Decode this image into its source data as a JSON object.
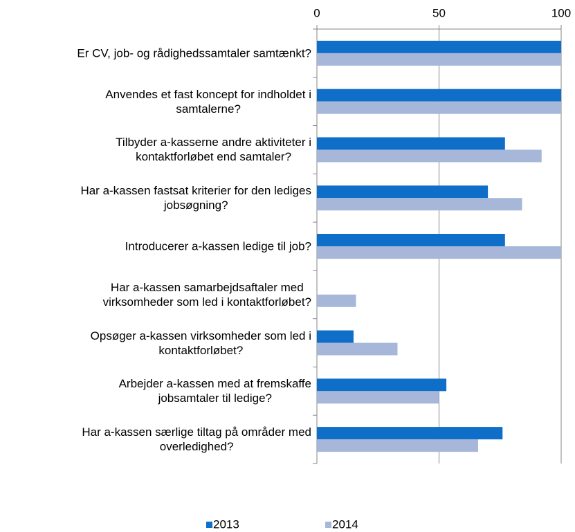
{
  "chart_data": {
    "type": "bar",
    "orientation": "horizontal",
    "categories": [
      "Er CV, job- og rådighedssamtaler samtænkt?",
      "Anvendes et fast koncept for indholdet i\nsamtalerne?",
      "Tilbyder a-kasserne andre aktiviteter i\nkontaktforløbet end samtaler?",
      "Har a-kassen fastsat kriterier for den lediges\njobsøgning?",
      "Introducerer a-kassen ledige til job?",
      "Har a-kassen samarbejdsaftaler med\nvirksomheder som led i kontaktforløbet?",
      "Opsøger a-kassen virksomheder som led i\nkontaktforløbet?",
      "Arbejder a-kassen med at fremskaffe\njobsamtaler til ledige?",
      "Har a-kassen særlige tiltag på områder med\noverledighed?"
    ],
    "series": [
      {
        "name": "2013",
        "color": "#0f6ec8",
        "values": [
          100,
          100,
          77,
          70,
          77,
          0,
          15,
          53,
          76
        ]
      },
      {
        "name": "2014",
        "color": "#a7b7d9",
        "values": [
          100,
          100,
          92,
          84,
          100,
          16,
          33,
          50,
          66
        ]
      }
    ],
    "xlim": [
      0,
      100
    ],
    "xticks": [
      0,
      50,
      100
    ],
    "grid": true,
    "legend": "bottom"
  }
}
